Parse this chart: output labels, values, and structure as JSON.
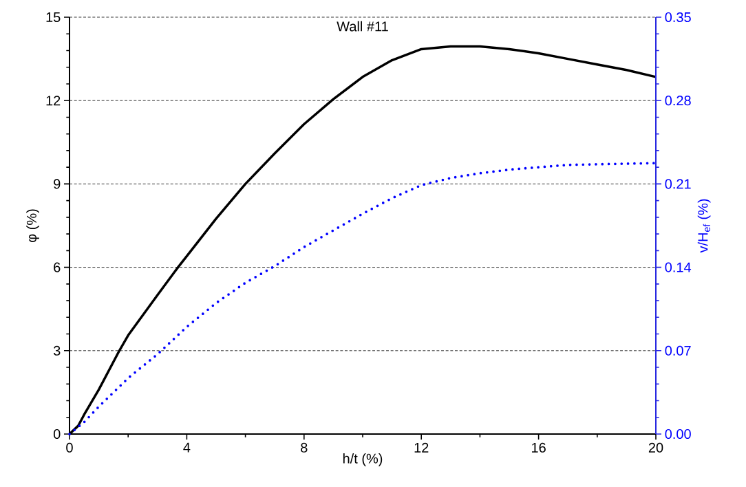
{
  "chart_data": {
    "type": "line",
    "title": "Wall #11",
    "xlabel": "h/t (%)",
    "ylabel": "φ (%)",
    "y2label": "v/H$_{ef}$ (%)",
    "xlim": [
      0,
      20
    ],
    "xticks": [
      0,
      4,
      8,
      12,
      16,
      20
    ],
    "ylim": [
      0,
      15
    ],
    "yticks": [
      0,
      3,
      6,
      9,
      12,
      15
    ],
    "y2lim": [
      0,
      0.35
    ],
    "y2ticks": [
      {
        "value": 0,
        "label": "0.00"
      },
      0.07,
      0.14,
      0.21,
      0.28,
      0.35
    ],
    "grid": "y",
    "series": [
      {
        "color": "#000000",
        "line_style": "solid",
        "x": [
          0,
          0.3,
          0.5,
          1,
          1.7,
          2,
          3,
          3.7,
          4,
          5,
          6,
          7,
          8,
          9,
          10,
          11,
          12,
          12.5,
          13,
          14,
          15,
          16,
          17,
          18,
          19,
          20
        ],
        "values": [
          0,
          0.3,
          0.7,
          1.6,
          3,
          3.55,
          5.0,
          6,
          6.4,
          7.75,
          9,
          10.1,
          11.15,
          12.05,
          12.85,
          13.45,
          13.85,
          13.9,
          13.95,
          13.95,
          13.85,
          13.7,
          13.5,
          13.3,
          13.1,
          12.85
        ]
      },
      {
        "color": "#0000ff",
        "line_style": "dotted",
        "axis": "y2",
        "x": [
          0,
          0.5,
          1,
          2,
          3,
          4,
          5,
          6,
          7,
          8,
          9,
          10,
          11,
          12,
          13,
          14,
          15,
          16,
          17,
          18,
          19,
          20
        ],
        "values": [
          0,
          0.01,
          0.023,
          0.047,
          0.067,
          0.09,
          0.11,
          0.127,
          0.141,
          0.157,
          0.171,
          0.185,
          0.198,
          0.209,
          0.215,
          0.219,
          0.222,
          0.224,
          0.226,
          0.2265,
          0.227,
          0.2275
        ]
      }
    ]
  }
}
